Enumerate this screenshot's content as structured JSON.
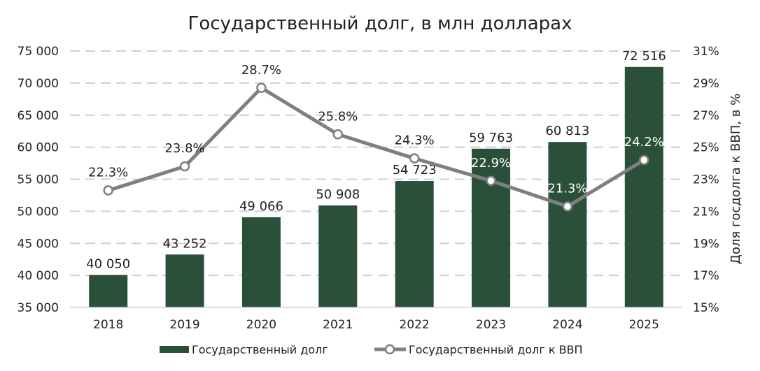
{
  "chart_data": {
    "type": "bar+line",
    "title": "Государственный долг, в млн долларах",
    "categories": [
      "2018",
      "2019",
      "2020",
      "2021",
      "2022",
      "2023",
      "2024",
      "2025"
    ],
    "series": [
      {
        "name": "Государственный долг",
        "type": "bar",
        "axis": "left",
        "color": "#2a5039",
        "values": [
          40050,
          43252,
          49066,
          50908,
          54723,
          59763,
          60813,
          72516
        ],
        "labels": [
          "40 050",
          "43 252",
          "49 066",
          "50 908",
          "54 723",
          "59 763",
          "60 813",
          "72 516"
        ]
      },
      {
        "name": "Государственный долг к ВВП",
        "type": "line",
        "axis": "right",
        "color": "#7f7f7f",
        "values": [
          22.3,
          23.8,
          28.7,
          25.8,
          24.3,
          22.9,
          21.3,
          24.2
        ],
        "labels": [
          "22.3%",
          "23.8%",
          "28.7%",
          "25.8%",
          "24.3%",
          "22.9%",
          "21.3%",
          "24.2%"
        ]
      }
    ],
    "left_axis": {
      "range": [
        35000,
        75000
      ],
      "ticks": [
        "35 000",
        "40 000",
        "45 000",
        "50 000",
        "55 000",
        "60 000",
        "65 000",
        "70 000",
        "75 000"
      ]
    },
    "right_axis": {
      "label": "Доля госдолга к ВВП, в %",
      "range": [
        15,
        31
      ],
      "ticks": [
        "15%",
        "17%",
        "19%",
        "21%",
        "23%",
        "25%",
        "27%",
        "29%",
        "31%"
      ]
    },
    "grid": true,
    "legend": "bottom"
  }
}
